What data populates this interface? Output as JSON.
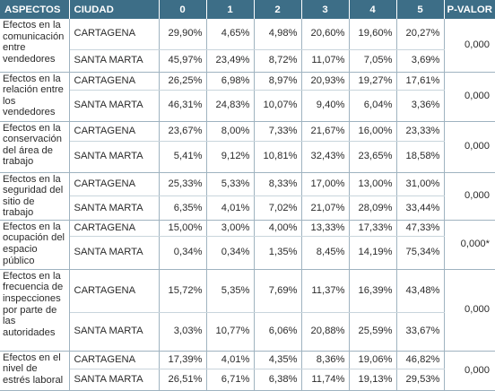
{
  "table": {
    "headers": {
      "aspect": "ASPECTOS",
      "city": "CIUDAD",
      "c0": "0",
      "c1": "1",
      "c2": "2",
      "c3": "3",
      "c4": "4",
      "c5": "5",
      "pvalue": "P-VALOR"
    },
    "groups": [
      {
        "aspect": "Efectos en la comunicación entre vendedores",
        "pvalue": "0,000",
        "rows": [
          {
            "city": "CARTAGENA",
            "v": [
              "29,90%",
              "4,65%",
              "4,98%",
              "20,60%",
              "19,60%",
              "20,27%"
            ]
          },
          {
            "city": "SANTA MARTA",
            "v": [
              "45,97%",
              "23,49%",
              "8,72%",
              "11,07%",
              "7,05%",
              "3,69%"
            ]
          }
        ]
      },
      {
        "aspect": "Efectos en la relación entre los vendedores",
        "pvalue": "0,000",
        "rows": [
          {
            "city": "CARTAGENA",
            "v": [
              "26,25%",
              "6,98%",
              "8,97%",
              "20,93%",
              "19,27%",
              "17,61%"
            ]
          },
          {
            "city": "SANTA MARTA",
            "v": [
              "46,31%",
              "24,83%",
              "10,07%",
              "9,40%",
              "6,04%",
              "3,36%"
            ]
          }
        ]
      },
      {
        "aspect": "Efectos en la conservación del área de trabajo",
        "pvalue": "0,000",
        "rows": [
          {
            "city": "CARTAGENA",
            "v": [
              "23,67%",
              "8,00%",
              "7,33%",
              "21,67%",
              "16,00%",
              "23,33%"
            ]
          },
          {
            "city": "SANTA MARTA",
            "v": [
              "5,41%",
              "9,12%",
              "10,81%",
              "32,43%",
              "23,65%",
              "18,58%"
            ]
          }
        ]
      },
      {
        "aspect": "Efectos en la seguridad del sitio de trabajo",
        "pvalue": "0,000",
        "rows": [
          {
            "city": "CARTAGENA",
            "v": [
              "25,33%",
              "5,33%",
              "8,33%",
              "17,00%",
              "13,00%",
              "31,00%"
            ]
          },
          {
            "city": "SANTA MARTA",
            "v": [
              "6,35%",
              "4,01%",
              "7,02%",
              "21,07%",
              "28,09%",
              "33,44%"
            ]
          }
        ]
      },
      {
        "aspect": "Efectos en la ocupación del espacio público",
        "pvalue": "0,000*",
        "rows": [
          {
            "city": "CARTAGENA",
            "v": [
              "15,00%",
              "3,00%",
              "4,00%",
              "13,33%",
              "17,33%",
              "47,33%"
            ]
          },
          {
            "city": "SANTA MARTA",
            "v": [
              "0,34%",
              "0,34%",
              "1,35%",
              "8,45%",
              "14,19%",
              "75,34%"
            ]
          }
        ]
      },
      {
        "aspect": "Efectos en la frecuencia de inspecciones por parte de las autoridades",
        "pvalue": "0,000",
        "rows": [
          {
            "city": "CARTAGENA",
            "v": [
              "15,72%",
              "5,35%",
              "7,69%",
              "11,37%",
              "16,39%",
              "43,48%"
            ]
          },
          {
            "city": "SANTA MARTA",
            "v": [
              "3,03%",
              "10,77%",
              "6,06%",
              "20,88%",
              "25,59%",
              "33,67%"
            ]
          }
        ]
      },
      {
        "aspect": "Efectos en el nivel de estrés laboral",
        "pvalue": "0,000",
        "rows": [
          {
            "city": "CARTAGENA",
            "v": [
              "17,39%",
              "4,01%",
              "4,35%",
              "8,36%",
              "19,06%",
              "46,82%"
            ]
          },
          {
            "city": "SANTA MARTA",
            "v": [
              "26,51%",
              "6,71%",
              "6,38%",
              "11,74%",
              "19,13%",
              "29,53%"
            ]
          }
        ]
      }
    ]
  },
  "colors": {
    "header_bg": "#3d6e87",
    "header_text": "#ffffff",
    "grid": "#9fb3c0",
    "body_text": "#2b2b2b"
  }
}
